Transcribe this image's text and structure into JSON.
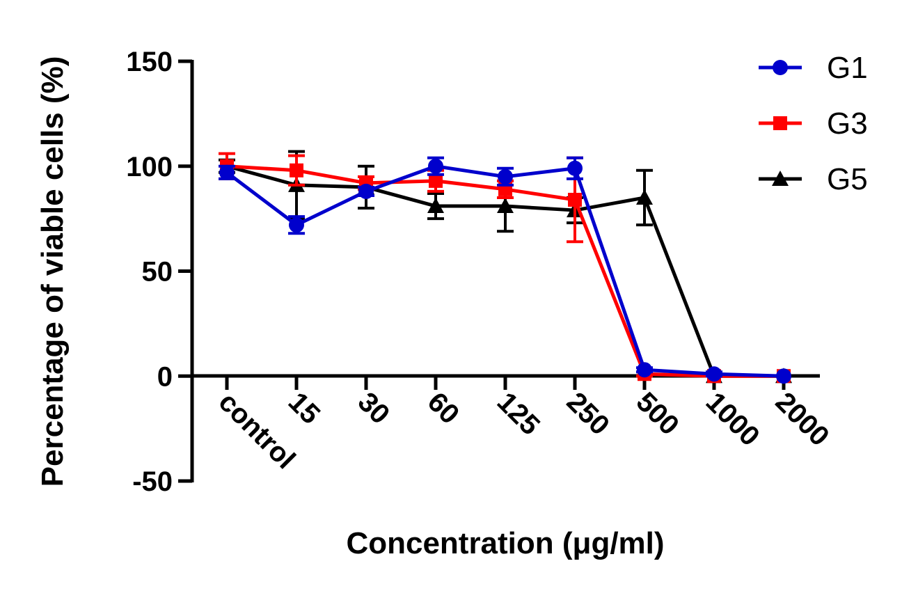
{
  "chart_data": {
    "type": "line",
    "categories": [
      "control",
      "15",
      "30",
      "60",
      "125",
      "250",
      "500",
      "1000",
      "2000"
    ],
    "xlabel": "Concentration (μg/ml)",
    "ylabel": "Percentage of viable cells (%)",
    "ylim": [
      -50,
      150
    ],
    "yticks": [
      -50,
      0,
      50,
      100,
      150
    ],
    "grid": false,
    "legend_position": "top-right",
    "series": [
      {
        "name": "G1",
        "color": "#0000CC",
        "marker": "circle",
        "values": [
          97,
          72,
          88,
          100,
          95,
          99,
          3,
          1,
          0
        ],
        "errors": [
          3,
          4,
          2,
          4,
          4,
          5,
          1,
          1,
          0
        ]
      },
      {
        "name": "G3",
        "color": "#FF0000",
        "marker": "square",
        "values": [
          100,
          98,
          92,
          93,
          89,
          84,
          1,
          0,
          0
        ],
        "errors": [
          6,
          7,
          3,
          5,
          4,
          20,
          1,
          0,
          0
        ]
      },
      {
        "name": "G5",
        "color": "#000000",
        "marker": "triangle",
        "values": [
          100,
          91,
          90,
          81,
          81,
          79,
          85,
          0,
          0
        ],
        "errors": [
          3,
          16,
          10,
          6,
          12,
          6,
          13,
          0,
          0
        ]
      }
    ]
  }
}
